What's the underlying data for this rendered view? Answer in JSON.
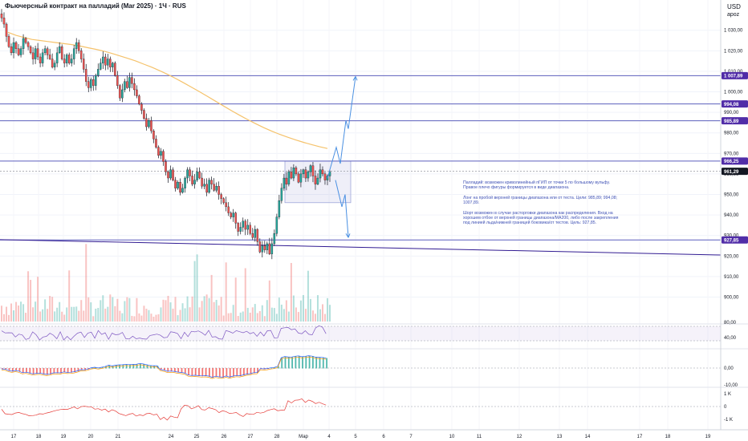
{
  "header": {
    "title": "Фьючерсный контракт на палладий (Mar 2025) · 1Ч · RUS",
    "currency": "USD",
    "currency_sub": "apoz"
  },
  "price_axis": {
    "labels": [
      "1 030,00",
      "1 020,00",
      "1 010,00",
      "1 000,00",
      "990,00",
      "980,00",
      "970,00",
      "960,00",
      "950,00",
      "940,00",
      "930,00",
      "920,00",
      "910,00",
      "900,00"
    ]
  },
  "price_tags": [
    {
      "text": "1 007,89",
      "color": "#512da8"
    },
    {
      "text": "994,08",
      "color": "#512da8"
    },
    {
      "text": "985,89",
      "color": "#512da8"
    },
    {
      "text": "966,25",
      "color": "#512da8"
    },
    {
      "text": "961,29",
      "color": "#131722"
    },
    {
      "text": "927,85",
      "color": "#512da8"
    }
  ],
  "rsi_axis": {
    "labels": [
      "80,00",
      "40,00"
    ]
  },
  "macd_axis": {
    "labels": [
      "0,00",
      "-10,00"
    ]
  },
  "osc_axis": {
    "labels": [
      "1 K",
      "0",
      "-1 K"
    ]
  },
  "time_axis": {
    "labels": [
      "17",
      "18",
      "19",
      "20",
      "21",
      "24",
      "25",
      "26",
      "27",
      "28",
      "Мар",
      "4",
      "5",
      "6",
      "7",
      "10",
      "11",
      "12",
      "13",
      "14",
      "17",
      "18",
      "19"
    ]
  },
  "note": {
    "text": "Палладий: возможен криволинейный пГИП от точки 5 по большому вульфу. Правое плечо фигуры формируется в виде диапазона.\n\nЛонг на пробой верхней границы диапазона или от теста. Цели: 985,89; 994,08; 1007,89.\n\nШорт возможен в случае расторговки диапазона как распределения. Вход на хорошем отбое от верхней границы диапазона/MA200, либо после закрепления под линией льда/нижней границей боковика/от тестов. Цель: 927,85."
  },
  "colors": {
    "up": "#26a69a",
    "down": "#ef5350",
    "levels": "#5c5fbd",
    "ma": "#f5c26b",
    "arrows": "#4a90e2",
    "rsi": "#7e57c2",
    "macd_line": "#2962ff",
    "signal_line": "#ff9800",
    "osc_line": "#e53935"
  },
  "chart_data": {
    "type": "candlestick",
    "title": "Фьючерсный контракт на палладий (Mar 2025) · 1Ч · RUS",
    "y_axis": {
      "ylim": [
        892,
        1042
      ],
      "ticks": [
        1030,
        1020,
        1010,
        1000,
        990,
        980,
        970,
        960,
        950,
        940,
        930,
        920,
        910,
        900
      ]
    },
    "x_axis": {
      "ticks": [
        "17",
        "18",
        "19",
        "20",
        "21",
        "24",
        "25",
        "26",
        "27",
        "28",
        "Мар",
        "4",
        "5",
        "6",
        "7",
        "10",
        "11",
        "12",
        "13",
        "14",
        "17",
        "18",
        "19"
      ]
    },
    "close_series": [
      1036,
      1033,
      1027,
      1022,
      1019,
      1024,
      1021,
      1018,
      1021,
      1026,
      1024,
      1022,
      1019,
      1016,
      1021,
      1017,
      1014,
      1019,
      1021,
      1018,
      1016,
      1012,
      1014,
      1019,
      1022,
      1016,
      1014,
      1018,
      1014,
      1016,
      1021,
      1024,
      1020,
      1016,
      1011,
      1005,
      1002,
      1006,
      1003,
      1008,
      1011,
      1014,
      1017,
      1013,
      1016,
      1012,
      1014,
      1008,
      1003,
      997,
      1001,
      1005,
      1002,
      1007,
      1004,
      1001,
      998,
      994,
      991,
      987,
      983,
      986,
      981,
      977,
      973,
      969,
      971,
      966,
      961,
      958,
      962,
      957,
      953,
      956,
      951,
      953,
      958,
      962,
      959,
      955,
      957,
      961,
      958,
      954,
      955,
      951,
      957,
      955,
      952,
      954,
      950,
      948,
      946,
      944,
      941,
      939,
      941,
      936,
      932,
      934,
      937,
      933,
      935,
      931,
      929,
      933,
      927,
      922,
      925,
      923,
      926,
      921,
      926,
      931,
      939,
      947,
      953,
      958,
      955,
      961,
      958,
      963,
      960,
      956,
      960,
      962,
      958,
      961,
      964,
      959,
      955,
      958,
      962,
      960,
      957,
      959,
      961
    ],
    "ma200": [
      1029,
      1027.5,
      1026.5,
      1025.5,
      1025,
      1024.5,
      1024,
      1023.5,
      1023,
      1022.3,
      1021.5,
      1020.7,
      1019.8,
      1018.7,
      1017.5,
      1016.3,
      1015,
      1013.5,
      1012,
      1010.3,
      1008.5,
      1006.5,
      1004.4,
      1002.2,
      1000,
      997.7,
      995.4,
      993.1,
      990.8,
      988.6,
      986.5,
      984.5,
      982.6,
      980.9,
      979.3,
      977.9,
      976.6,
      975.4,
      974.3,
      973.3,
      972.4
    ],
    "levels": [
      {
        "name": "",
        "value": 1007.89
      },
      {
        "name": "",
        "value": 994.08
      },
      {
        "name": "",
        "value": 985.89
      },
      {
        "name": "",
        "value": 966.25
      },
      {
        "name": "",
        "value": 927.85
      }
    ],
    "range_box": {
      "top": 966.25,
      "bottom": 946
    },
    "support_line": {
      "from": 928,
      "to": 920.5
    },
    "current_price": 961.29,
    "indicators": [
      {
        "name": "",
        "type": "rsi",
        "levels": [
          80,
          40
        ]
      },
      {
        "name": "",
        "type": "macd",
        "levels": [
          0,
          -10
        ]
      },
      {
        "name": "",
        "type": "oscillator",
        "levels": [
          1000,
          0,
          -1000
        ]
      }
    ]
  }
}
